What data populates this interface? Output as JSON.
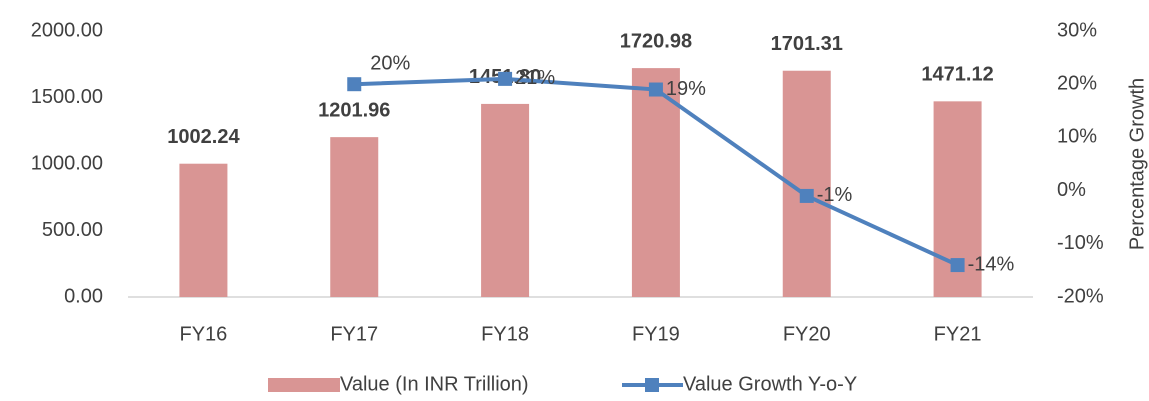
{
  "chart_data": {
    "type": "bar",
    "categories": [
      "FY16",
      "FY17",
      "FY18",
      "FY19",
      "FY20",
      "FY21"
    ],
    "series": [
      {
        "name": "Value (In INR Trillion)",
        "type": "bar",
        "color": "#d99594",
        "values": [
          1002.24,
          1201.96,
          1451.8,
          1720.98,
          1701.31,
          1471.12
        ],
        "value_labels": [
          "1002.24",
          "1201.96",
          "1451.80",
          "1720.98",
          "1701.31",
          "1471.12"
        ]
      },
      {
        "name": "Value Growth Y-o-Y",
        "type": "line",
        "axis": "y2",
        "color": "#4f81bd",
        "values": [
          null,
          20,
          21,
          19,
          -1,
          -14
        ],
        "value_labels": [
          null,
          "20%",
          "21%",
          "19%",
          "-1%",
          "-14%"
        ]
      }
    ],
    "ylim": [
      0,
      2000
    ],
    "yticks": [
      {
        "value": 0,
        "label": "0.00"
      },
      {
        "value": 500,
        "label": "500.00"
      },
      {
        "value": 1000,
        "label": "1000.00"
      },
      {
        "value": 1500,
        "label": "1500.00"
      },
      {
        "value": 2000,
        "label": "2000.00"
      }
    ],
    "y2lim": [
      -20,
      30
    ],
    "y2ticks": [
      {
        "value": -20,
        "label": "-20%"
      },
      {
        "value": -10,
        "label": "-10%"
      },
      {
        "value": 0,
        "label": "0%"
      },
      {
        "value": 10,
        "label": "10%"
      },
      {
        "value": 20,
        "label": "20%"
      },
      {
        "value": 30,
        "label": "30%"
      }
    ],
    "y2label": "Percentage Growth",
    "grid": false,
    "legend": "bottom"
  }
}
